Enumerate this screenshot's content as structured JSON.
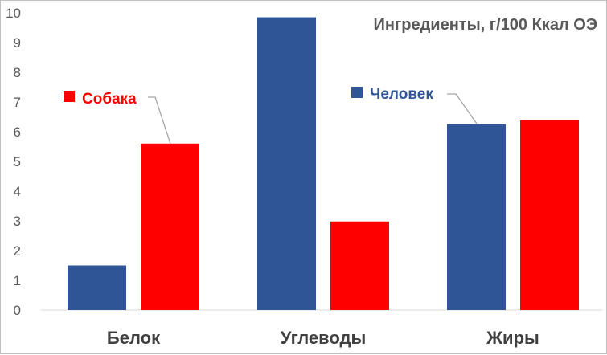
{
  "chart_data": {
    "type": "bar",
    "title": "Ингредиенты, г/100 Ккал ОЭ",
    "categories": [
      "Белок",
      "Углеводы",
      "Жиры"
    ],
    "series": [
      {
        "name": "Человек",
        "values": [
          1.5,
          9.85,
          6.25
        ],
        "color": "#2f5597"
      },
      {
        "name": "Собака",
        "values": [
          5.6,
          2.98,
          6.38
        ],
        "color": "#ff0000"
      }
    ],
    "ylim": [
      0,
      10
    ],
    "yticks": [
      "0",
      "1",
      "2",
      "3",
      "4",
      "5",
      "6",
      "7",
      "8",
      "9",
      "10"
    ],
    "grid": false,
    "legend": "inline-callouts"
  }
}
